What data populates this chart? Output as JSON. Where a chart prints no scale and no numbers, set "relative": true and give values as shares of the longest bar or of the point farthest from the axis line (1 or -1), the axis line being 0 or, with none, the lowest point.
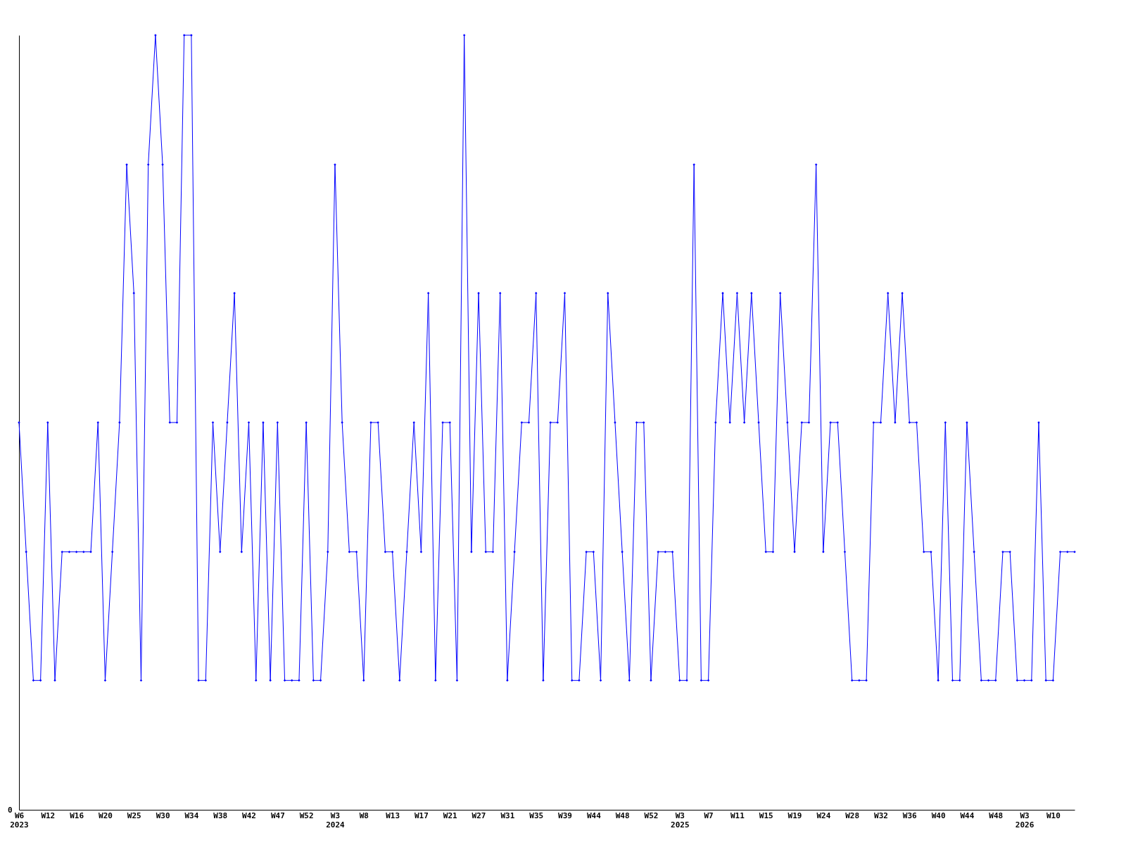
{
  "chart_data": {
    "type": "line",
    "relative": true,
    "marker": "diamond",
    "line_style": "solid",
    "grid": false,
    "legend": false,
    "annotations": [
      "0"
    ],
    "categories": [
      "W6\n2023",
      null,
      null,
      null,
      "W12",
      null,
      null,
      null,
      "W16",
      null,
      null,
      null,
      "W20",
      null,
      null,
      null,
      "W25",
      null,
      null,
      null,
      "W30",
      null,
      null,
      null,
      "W34",
      null,
      null,
      null,
      "W38",
      null,
      null,
      null,
      "W42",
      null,
      null,
      null,
      "W47",
      null,
      null,
      null,
      "W52",
      null,
      null,
      null,
      "W3\n2024",
      null,
      null,
      null,
      "W8",
      null,
      null,
      null,
      "W13",
      null,
      null,
      null,
      "W17",
      null,
      null,
      null,
      "W21",
      null,
      null,
      null,
      "W27",
      null,
      null,
      null,
      "W31",
      null,
      null,
      null,
      "W35",
      null,
      null,
      null,
      "W39",
      null,
      null,
      null,
      "W44",
      null,
      null,
      null,
      "W48",
      null,
      null,
      null,
      "W52",
      null,
      null,
      null,
      "W3\n2025",
      null,
      null,
      null,
      "W7",
      null,
      null,
      null,
      "W11",
      null,
      null,
      null,
      "W15",
      null,
      null,
      null,
      "W19",
      null,
      null,
      null,
      "W24",
      null,
      null,
      null,
      "W28",
      null,
      null,
      null,
      "W32",
      null,
      null,
      null,
      "W36",
      null,
      null,
      null,
      "W40",
      null,
      null,
      null,
      "W44",
      null,
      null,
      null,
      "W48",
      null,
      null,
      null,
      "W3\n2026",
      null,
      null,
      null,
      "W10",
      null,
      null,
      null
    ],
    "series": [
      {
        "color": "#0000ff",
        "values": [
          0.5,
          0.333,
          0.167,
          0.167,
          0.5,
          0.167,
          0.333,
          0.333,
          0.333,
          0.333,
          0.333,
          0.5,
          0.167,
          0.333,
          0.5,
          0.833,
          0.667,
          0.167,
          0.833,
          1,
          0.833,
          0.5,
          0.5,
          1,
          1,
          0.167,
          0.167,
          0.5,
          0.333,
          0.5,
          0.667,
          0.333,
          0.5,
          0.167,
          0.5,
          0.167,
          0.5,
          0.167,
          0.167,
          0.167,
          0.5,
          0.167,
          0.167,
          0.333,
          0.833,
          0.5,
          0.333,
          0.333,
          0.167,
          0.5,
          0.5,
          0.333,
          0.333,
          0.167,
          0.333,
          0.5,
          0.333,
          0.667,
          0.167,
          0.5,
          0.5,
          0.167,
          1,
          0.333,
          0.667,
          0.333,
          0.333,
          0.667,
          0.167,
          0.333,
          0.5,
          0.5,
          0.667,
          0.167,
          0.5,
          0.5,
          0.667,
          0.167,
          0.167,
          0.333,
          0.333,
          0.167,
          0.667,
          0.5,
          0.333,
          0.167,
          0.5,
          0.5,
          0.167,
          0.333,
          0.333,
          0.333,
          0.167,
          0.167,
          0.833,
          0.167,
          0.167,
          0.5,
          0.667,
          0.5,
          0.667,
          0.5,
          0.667,
          0.5,
          0.333,
          0.333,
          0.667,
          0.5,
          0.333,
          0.5,
          0.5,
          0.833,
          0.333,
          0.5,
          0.5,
          0.333,
          0.167,
          0.167,
          0.167,
          0.5,
          0.5,
          0.667,
          0.5,
          0.667,
          0.5,
          0.5,
          0.333,
          0.333,
          0.167,
          0.5,
          0.167,
          0.167,
          0.5,
          0.333,
          0.167,
          0.167,
          0.167,
          0.333,
          0.333,
          0.167,
          0.167,
          0.167,
          0.5,
          0.167,
          0.167,
          0.333,
          0.333,
          0.333
        ]
      }
    ]
  }
}
